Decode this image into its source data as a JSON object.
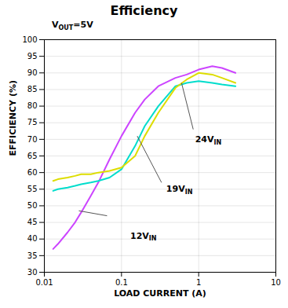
{
  "chart_data": {
    "type": "line",
    "title": "Efficiency",
    "subtitle": {
      "text": "V",
      "subscript": "OUT",
      "after": "=5V"
    },
    "x_label": "LOAD CURRENT (A)",
    "y_label": "EFFICIENCY (%)",
    "log": "x",
    "grid": true,
    "xlim": [
      0.01,
      10
    ],
    "ylim": [
      30,
      100
    ],
    "xticks": [
      0.01,
      0.1,
      1,
      10
    ],
    "yticks": [
      30,
      35,
      40,
      45,
      50,
      55,
      60,
      65,
      70,
      75,
      80,
      85,
      90,
      95,
      100
    ],
    "x": [
      0.013,
      0.015,
      0.02,
      0.025,
      0.03,
      0.04,
      0.05,
      0.07,
      0.1,
      0.15,
      0.2,
      0.3,
      0.5,
      0.7,
      1.0,
      1.5,
      2.0,
      3.0
    ],
    "series": [
      {
        "name": "12V",
        "color": "#cc44ff",
        "values": [
          37,
          38.5,
          42,
          45,
          48,
          53,
          57,
          64,
          71,
          78,
          82,
          86,
          88.5,
          89.5,
          91,
          92,
          91.5,
          90
        ]
      },
      {
        "name": "19V",
        "color": "#00ddcc",
        "values": [
          54.5,
          55,
          55.5,
          56,
          56.5,
          57,
          57.5,
          58.5,
          61,
          68,
          74,
          80,
          86,
          87,
          87.5,
          87,
          86.5,
          86
        ]
      },
      {
        "name": "24V",
        "color": "#dddd00",
        "values": [
          57.5,
          58,
          58.5,
          59,
          59.5,
          59.5,
          60,
          60.5,
          61.5,
          65,
          71,
          78,
          85.5,
          88,
          90,
          89.5,
          88.5,
          87
        ]
      }
    ],
    "annotations": [
      {
        "text": "12V",
        "subscript": "IN",
        "x": 0.13,
        "y": 41,
        "color": "#555555",
        "arrow": {
          "from": [
            0.065,
            47
          ],
          "to": [
            0.028,
            48.5
          ]
        }
      },
      {
        "text": "19V",
        "subscript": "IN",
        "x": 0.38,
        "y": 55,
        "color": "#555555",
        "arrow": {
          "from": [
            0.33,
            57
          ],
          "to": [
            0.16,
            71
          ]
        }
      },
      {
        "text": "24V",
        "subscript": "IN",
        "x": 0.9,
        "y": 70,
        "color": "#555555",
        "arrow": {
          "from": [
            0.85,
            73
          ],
          "to": [
            0.6,
            87
          ]
        }
      }
    ]
  }
}
